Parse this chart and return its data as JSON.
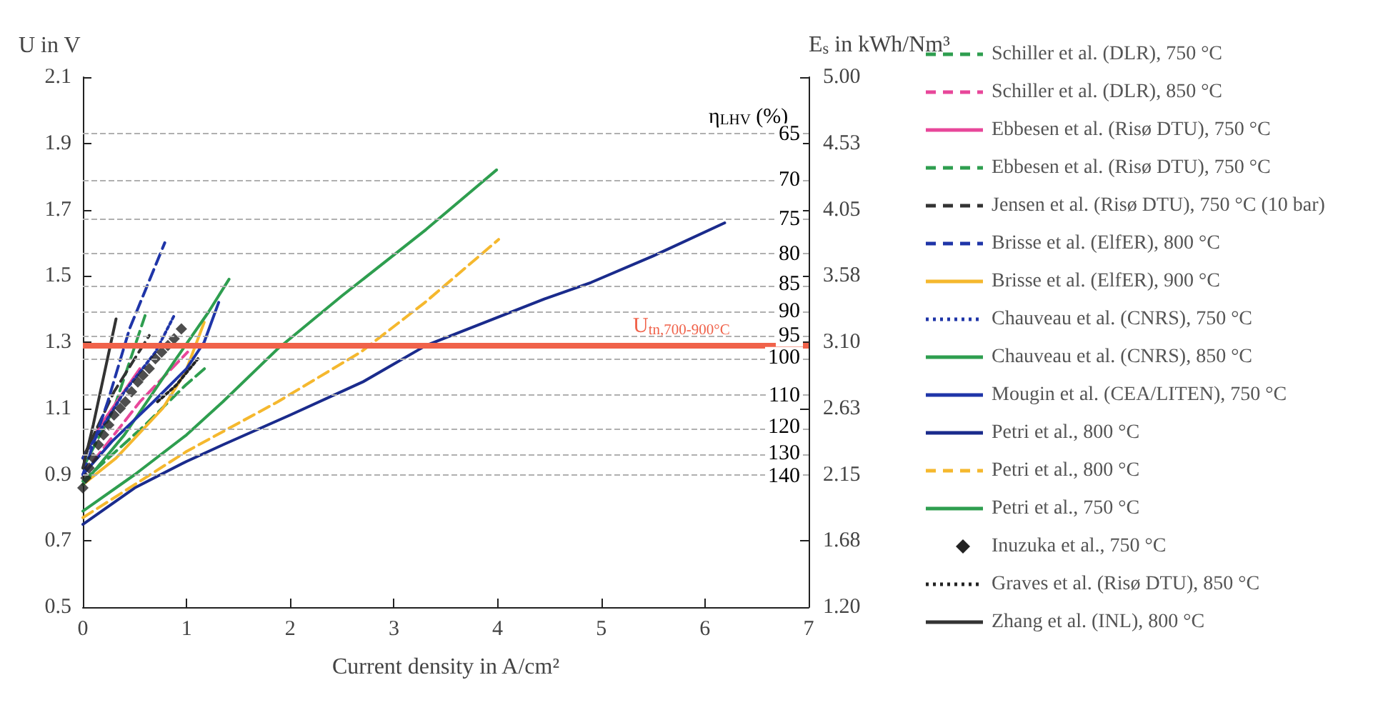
{
  "chart_data": {
    "type": "line",
    "xlabel": "Current density in A/cm²",
    "ylabel": "U in V",
    "y2label": "E$_{s}$ in kWh/Nm³",
    "xlim": [
      0,
      7
    ],
    "xticks": [
      0,
      1,
      2,
      3,
      4,
      5,
      6,
      7
    ],
    "ylim": [
      0.5,
      2.1
    ],
    "yticks": [
      {
        "value": 0.5,
        "label": "0.5"
      },
      {
        "value": 0.7,
        "label": "0.7"
      },
      {
        "value": 0.9,
        "label": "0.9"
      },
      {
        "value": 1.1,
        "label": "1.1"
      },
      {
        "value": 1.3,
        "label": "1.3"
      },
      {
        "value": 1.5,
        "label": "1.5"
      },
      {
        "value": 1.7,
        "label": "1.7"
      },
      {
        "value": 1.9,
        "label": "1.9"
      },
      {
        "value": 2.1,
        "label": "2.1"
      }
    ],
    "y2lim": [
      1.2,
      5.0
    ],
    "y2ticks": [
      {
        "value": 1.2,
        "label": "1.20"
      },
      {
        "value": 1.675,
        "label": "1.68"
      },
      {
        "value": 2.15,
        "label": "2.15"
      },
      {
        "value": 2.625,
        "label": "2.63"
      },
      {
        "value": 3.1,
        "label": "3.10"
      },
      {
        "value": 3.575,
        "label": "3.58"
      },
      {
        "value": 4.05,
        "label": "4.05"
      },
      {
        "value": 4.525,
        "label": "4.53"
      },
      {
        "value": 5.0,
        "label": "5.00"
      }
    ],
    "legend": "right",
    "grid": false,
    "annotations": [
      "η$_{LHV}$ (%)",
      {
        "text": "65",
        "y": 1.928
      },
      {
        "text": "70",
        "y": 1.79
      },
      {
        "text": "75",
        "y": 1.671
      },
      {
        "text": "80",
        "y": 1.566
      },
      {
        "text": "85",
        "y": 1.474
      },
      {
        "text": "90",
        "y": 1.392
      },
      {
        "text": "95",
        "y": 1.319
      },
      {
        "text": "100",
        "y": 1.253
      },
      {
        "text": "110",
        "y": 1.139
      },
      {
        "text": "120",
        "y": 1.044
      },
      {
        "text": "130",
        "y": 0.964
      },
      {
        "text": "140",
        "y": 0.895
      }
    ],
    "ref_lines": [
      {
        "axis": "y",
        "value": 1.29,
        "label": "U$_{tn,700-900°C}$",
        "color": "#f0624a",
        "line_style": "solid"
      },
      {
        "axis": "y",
        "value": 1.928,
        "color": "#b0b0b0",
        "line_style": "dashed"
      },
      {
        "axis": "y",
        "value": 1.79,
        "color": "#b0b0b0",
        "line_style": "dashed"
      },
      {
        "axis": "y",
        "value": 1.671,
        "color": "#b0b0b0",
        "line_style": "dashed"
      },
      {
        "axis": "y",
        "value": 1.566,
        "color": "#b0b0b0",
        "line_style": "dashed"
      },
      {
        "axis": "y",
        "value": 1.474,
        "color": "#b0b0b0",
        "line_style": "dashed"
      },
      {
        "axis": "y",
        "value": 1.392,
        "color": "#b0b0b0",
        "line_style": "dashed"
      },
      {
        "axis": "y",
        "value": 1.319,
        "color": "#b0b0b0",
        "line_style": "dashed"
      },
      {
        "axis": "y",
        "value": 1.253,
        "color": "#b0b0b0",
        "line_style": "dashed"
      },
      {
        "axis": "y",
        "value": 1.139,
        "color": "#b0b0b0",
        "line_style": "dashed"
      },
      {
        "axis": "y",
        "value": 1.044,
        "color": "#b0b0b0",
        "line_style": "dashed"
      },
      {
        "axis": "y",
        "value": 0.964,
        "color": "#b0b0b0",
        "line_style": "dashed"
      },
      {
        "axis": "y",
        "value": 0.895,
        "color": "#b0b0b0",
        "line_style": "dashed"
      }
    ],
    "series": [
      {
        "name": "Schiller et al. (DLR), 750 °C",
        "color": "#2e9e4f",
        "line_style": "dashed",
        "x": [
          0,
          0.3,
          0.6
        ],
        "values": [
          0.92,
          1.1,
          1.38
        ]
      },
      {
        "name": "Schiller et al. (DLR), 850 °C",
        "color": "#e8479a",
        "line_style": "dashed",
        "x": [
          0,
          0.55,
          1.01
        ],
        "values": [
          0.9,
          1.12,
          1.27
        ]
      },
      {
        "name": "Ebbesen et al. (Risø DTU), 750 °C",
        "color": "#e8479a",
        "line_style": "solid",
        "x": [
          0,
          0.15,
          0.55
        ],
        "values": [
          0.95,
          1.04,
          1.22
        ]
      },
      {
        "name": "Ebbesen et al. (Risø DTU), 750 °C",
        "color": "#2e9e4f",
        "line_style": "dashed",
        "x": [
          0,
          0.6,
          0.99,
          1.21
        ],
        "values": [
          0.88,
          1.05,
          1.17,
          1.23
        ]
      },
      {
        "name": "Jensen et al. (Risø DTU), 750 °C (10 bar)",
        "color": "#333333",
        "line_style": "dashed",
        "x": [
          0,
          0.3,
          0.64
        ],
        "values": [
          0.95,
          1.15,
          1.32
        ]
      },
      {
        "name": "Brisse et al. (ElfER), 800 °C",
        "color": "#1f35a8",
        "line_style": "dashed",
        "x": [
          0,
          0.24,
          0.45,
          0.79
        ],
        "values": [
          0.9,
          1.12,
          1.34,
          1.6
        ]
      },
      {
        "name": "Brisse et al. (ElfER), 900 °C",
        "color": "#f5b82e",
        "line_style": "solid",
        "x": [
          0,
          0.32,
          0.77,
          0.99,
          1.17
        ],
        "values": [
          0.87,
          0.95,
          1.1,
          1.21,
          1.36
        ]
      },
      {
        "name": "Chauveau et al. (CNRS), 750 °C",
        "color": "#1f35a8",
        "line_style": "dotted",
        "x": [
          0,
          0.4,
          0.7,
          0.88
        ],
        "values": [
          0.95,
          1.15,
          1.27,
          1.38
        ]
      },
      {
        "name": "Chauveau et al. (CNRS), 850 °C",
        "color": "#2e9e4f",
        "line_style": "solid",
        "x": [
          0,
          0.4,
          0.9,
          1.21,
          1.41
        ],
        "values": [
          0.87,
          1.02,
          1.25,
          1.39,
          1.49
        ]
      },
      {
        "name": "Mougin et al. (CEA/LITEN), 750 °C",
        "color": "#1f35a8",
        "line_style": "solid",
        "x": [
          0,
          0.28,
          0.68,
          1.0,
          1.17,
          1.31
        ],
        "values": [
          0.9,
          1.0,
          1.12,
          1.22,
          1.3,
          1.42
        ]
      },
      {
        "name": "Petri et al., 800 °C",
        "color": "#1a2b8c",
        "line_style": "solid",
        "x": [
          0,
          0.5,
          1,
          1.35,
          2,
          2.7,
          3.31,
          4.45,
          4.9,
          5.5,
          6.19
        ],
        "values": [
          0.75,
          0.86,
          0.94,
          0.99,
          1.08,
          1.18,
          1.29,
          1.43,
          1.48,
          1.56,
          1.66
        ]
      },
      {
        "name": "Petri et al., 800 °C",
        "color": "#f5b82e",
        "line_style": "dashed",
        "x": [
          0,
          0.5,
          1,
          1.41,
          1.88,
          2.68,
          3.3,
          4.01
        ],
        "values": [
          0.77,
          0.87,
          0.97,
          1.04,
          1.12,
          1.27,
          1.42,
          1.61
        ]
      },
      {
        "name": "Petri et al., 750 °C",
        "color": "#2e9e4f",
        "line_style": "solid",
        "x": [
          0,
          0.5,
          1,
          1.35,
          1.88,
          2.5,
          3.31,
          3.99
        ],
        "values": [
          0.79,
          0.9,
          1.02,
          1.12,
          1.28,
          1.44,
          1.64,
          1.82
        ]
      },
      {
        "name": "Inuzuka et al., 750 °C",
        "color": "#222222",
        "type": "scatter",
        "marker": "diamond",
        "x": [
          0,
          0.03,
          0.06,
          0.1,
          0.15,
          0.2,
          0.25,
          0.3,
          0.36,
          0.41,
          0.47,
          0.53,
          0.58,
          0.64,
          0.7,
          0.76,
          0.82,
          0.88,
          0.95
        ],
        "values": [
          0.86,
          0.89,
          0.92,
          0.95,
          0.99,
          1.02,
          1.05,
          1.08,
          1.1,
          1.12,
          1.15,
          1.18,
          1.2,
          1.22,
          1.25,
          1.27,
          1.29,
          1.31,
          1.34
        ]
      },
      {
        "name": "Graves et al. (Risø DTU), 850 °C",
        "color": "#222222",
        "line_style": "dotted",
        "x": [
          0.72,
          0.9,
          1.11
        ],
        "values": [
          1.12,
          1.17,
          1.25
        ]
      },
      {
        "name": "Zhang et al. (INL), 800 °C",
        "color": "#333333",
        "line_style": "solid",
        "x": [
          0,
          0.1,
          0.32
        ],
        "values": [
          0.92,
          1.05,
          1.37
        ]
      }
    ]
  }
}
